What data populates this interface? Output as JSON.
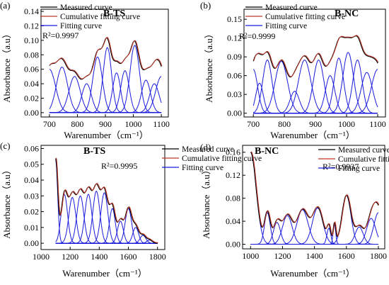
{
  "colors": {
    "measured": "#000000",
    "cumulative": "#c0392b",
    "fitting": "#1a1adc"
  },
  "chart_data": [
    {
      "panel_label": "(a)",
      "sample_label": "B-TS",
      "r2_text": "R²=0.9997",
      "type": "line",
      "xlabel": "Warenumber（cm⁻¹）",
      "ylabel": "Absorbance（a.u）",
      "xlim": [
        670,
        1125
      ],
      "ylim": [
        -0.006,
        0.143
      ],
      "xticks": [
        700,
        800,
        900,
        1000,
        1100
      ],
      "yticks": [
        0.0,
        0.02,
        0.04,
        0.06,
        0.08,
        0.1,
        0.12,
        0.14
      ],
      "ytick_labels": [
        "0.00",
        "0.02",
        "0.04",
        "0.06",
        "0.08",
        "0.10",
        "0.12",
        "0.14"
      ],
      "legend": [
        "Measured curve",
        "Cumulative fitting curve",
        "Fitting curve"
      ],
      "legend_position": "top-left",
      "x_range": [
        700,
        1100
      ],
      "peaks": [
        {
          "center": 700,
          "height": 0.06,
          "sigma": 22
        },
        {
          "center": 745,
          "height": 0.063,
          "sigma": 20
        },
        {
          "center": 790,
          "height": 0.05,
          "sigma": 20
        },
        {
          "center": 833,
          "height": 0.04,
          "sigma": 17
        },
        {
          "center": 872,
          "height": 0.077,
          "sigma": 17
        },
        {
          "center": 907,
          "height": 0.09,
          "sigma": 15
        },
        {
          "center": 940,
          "height": 0.055,
          "sigma": 14
        },
        {
          "center": 970,
          "height": 0.058,
          "sigma": 15
        },
        {
          "center": 1005,
          "height": 0.093,
          "sigma": 17
        },
        {
          "center": 1045,
          "height": 0.045,
          "sigma": 16
        },
        {
          "center": 1075,
          "height": 0.04,
          "sigma": 17
        },
        {
          "center": 1100,
          "height": 0.05,
          "sigma": 20
        }
      ]
    },
    {
      "panel_label": "(b)",
      "sample_label": "B-NC",
      "r2_text": "R²=0.9999",
      "type": "line",
      "xlabel": "Warenumber（cm⁻¹）",
      "ylabel": "Absorbance（a.u）",
      "xlim": [
        670,
        1125
      ],
      "ylim": [
        -0.006,
        0.166
      ],
      "xticks": [
        700,
        800,
        900,
        1000,
        1100
      ],
      "yticks": [
        0.0,
        0.03,
        0.06,
        0.09,
        0.12,
        0.15
      ],
      "ytick_labels": [
        "0.00",
        "0.03",
        "0.06",
        "0.09",
        "0.12",
        "0.15"
      ],
      "legend": [
        "Measured curve",
        "Cumulative fitting curve",
        "Fitting curve"
      ],
      "legend_position": "top-left",
      "x_range": [
        700,
        1100
      ],
      "peaks": [
        {
          "center": 700,
          "height": 0.07,
          "sigma": 14
        },
        {
          "center": 720,
          "height": 0.048,
          "sigma": 12
        },
        {
          "center": 745,
          "height": 0.085,
          "sigma": 15
        },
        {
          "center": 790,
          "height": 0.083,
          "sigma": 20
        },
        {
          "center": 833,
          "height": 0.035,
          "sigma": 15
        },
        {
          "center": 865,
          "height": 0.085,
          "sigma": 20
        },
        {
          "center": 910,
          "height": 0.085,
          "sigma": 17
        },
        {
          "center": 947,
          "height": 0.06,
          "sigma": 15
        },
        {
          "center": 975,
          "height": 0.088,
          "sigma": 15
        },
        {
          "center": 1005,
          "height": 0.097,
          "sigma": 17
        },
        {
          "center": 1035,
          "height": 0.085,
          "sigma": 15
        },
        {
          "center": 1065,
          "height": 0.065,
          "sigma": 18
        },
        {
          "center": 1100,
          "height": 0.07,
          "sigma": 20
        }
      ]
    },
    {
      "panel_label": "(c)",
      "sample_label": "B-TS",
      "r2_text": "R²=0.9995",
      "type": "line",
      "xlabel": "Warenumber（cm⁻¹）",
      "ylabel": "Absorbance（a.u）",
      "xlim": [
        1000,
        1850
      ],
      "ylim": [
        -0.004,
        0.062
      ],
      "xticks": [
        1000,
        1200,
        1400,
        1600,
        1800
      ],
      "yticks": [
        0.0,
        0.01,
        0.02,
        0.03,
        0.04,
        0.05,
        0.06
      ],
      "ytick_labels": [
        "0.00",
        "0.01",
        "0.02",
        "0.03",
        "0.04",
        "0.05",
        "0.06"
      ],
      "legend": [
        "Measured curve",
        "Cumulative fitting curve",
        "Fitting curve"
      ],
      "legend_position": "top-right",
      "x_range": [
        1100,
        1800
      ],
      "peaks": [
        {
          "center": 1100,
          "height": 0.053,
          "sigma": 14
        },
        {
          "center": 1160,
          "height": 0.031,
          "sigma": 22
        },
        {
          "center": 1215,
          "height": 0.029,
          "sigma": 24
        },
        {
          "center": 1270,
          "height": 0.03,
          "sigma": 24
        },
        {
          "center": 1325,
          "height": 0.031,
          "sigma": 24
        },
        {
          "center": 1380,
          "height": 0.033,
          "sigma": 24
        },
        {
          "center": 1435,
          "height": 0.032,
          "sigma": 24
        },
        {
          "center": 1490,
          "height": 0.022,
          "sigma": 20
        },
        {
          "center": 1545,
          "height": 0.014,
          "sigma": 20
        },
        {
          "center": 1600,
          "height": 0.022,
          "sigma": 22
        },
        {
          "center": 1650,
          "height": 0.01,
          "sigma": 20
        },
        {
          "center": 1700,
          "height": 0.005,
          "sigma": 20
        },
        {
          "center": 1745,
          "height": 0.002,
          "sigma": 18
        }
      ]
    },
    {
      "panel_label": "(d)",
      "sample_label": "B-NC",
      "r2_text": "R²=0.9937",
      "type": "line",
      "xlabel": "Warenumber（cm⁻¹）",
      "ylabel": "Absorbance（a.u）",
      "xlim": [
        950,
        1840
      ],
      "ylim": [
        -0.008,
        0.172
      ],
      "xticks": [
        1000,
        1200,
        1400,
        1600,
        1800
      ],
      "yticks": [
        0.0,
        0.04,
        0.08,
        0.12,
        0.16
      ],
      "ytick_labels": [
        "0.00",
        "0.04",
        "0.08",
        "0.12",
        "0.16"
      ],
      "legend": [
        "Measured curve",
        "Cumulative fitting curve",
        "Fitting curve"
      ],
      "legend_position": "top-right",
      "x_range": [
        1000,
        1800
      ],
      "peaks": [
        {
          "center": 1000,
          "height": 0.16,
          "sigma": 35
        },
        {
          "center": 1105,
          "height": 0.055,
          "sigma": 18
        },
        {
          "center": 1165,
          "height": 0.038,
          "sigma": 22
        },
        {
          "center": 1230,
          "height": 0.05,
          "sigma": 30
        },
        {
          "center": 1325,
          "height": 0.06,
          "sigma": 35
        },
        {
          "center": 1420,
          "height": 0.063,
          "sigma": 33
        },
        {
          "center": 1490,
          "height": 0.028,
          "sigma": 12
        },
        {
          "center": 1525,
          "height": 0.035,
          "sigma": 8
        },
        {
          "center": 1600,
          "height": 0.085,
          "sigma": 28
        },
        {
          "center": 1680,
          "height": 0.03,
          "sigma": 25
        },
        {
          "center": 1755,
          "height": 0.045,
          "sigma": 28
        },
        {
          "center": 1800,
          "height": 0.055,
          "sigma": 28
        }
      ]
    }
  ]
}
